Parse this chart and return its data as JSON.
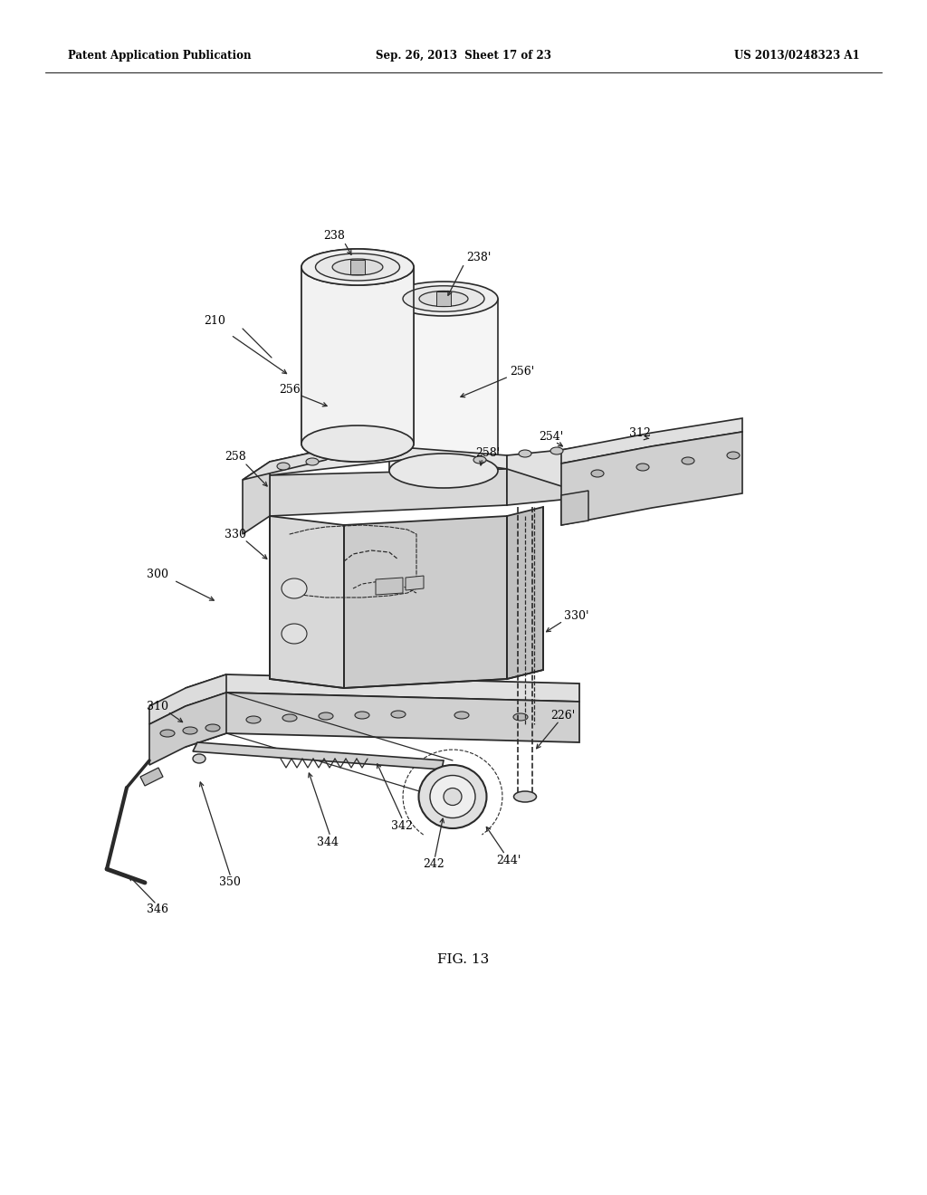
{
  "background_color": "#ffffff",
  "header_left": "Patent Application Publication",
  "header_center": "Sep. 26, 2013  Sheet 17 of 23",
  "header_right": "US 2013/0248323 A1",
  "figure_label": "FIG. 13",
  "line_color": "#2a2a2a",
  "text_color": "#000000",
  "lw_main": 1.3,
  "lw_thin": 0.8,
  "lw_dashed": 0.8,
  "label_fontsize": 9,
  "header_fontsize": 8.5,
  "caption_fontsize": 11
}
